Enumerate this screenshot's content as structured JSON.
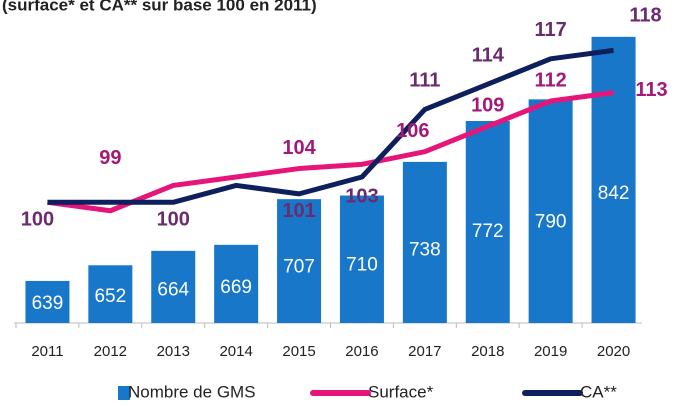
{
  "chart_data": {
    "type": "bar_line",
    "title": "(surface* et CA** sur base 100 en 2011)",
    "categories": [
      "2011",
      "2012",
      "2013",
      "2014",
      "2015",
      "2016",
      "2017",
      "2018",
      "2019",
      "2020"
    ],
    "ylim": [
      604,
      856
    ],
    "y2lim": [
      85.7,
      121.6
    ],
    "series": [
      {
        "name": "Nombre de GMS",
        "type": "bar",
        "color": "#1877c9",
        "values": [
          639,
          652,
          664,
          669,
          707,
          710,
          738,
          772,
          790,
          842
        ]
      },
      {
        "name": "Surface*",
        "type": "line",
        "axis": "y2",
        "color": "#e6157a",
        "label_color": "#a3197a",
        "values": [
          100,
          99,
          102,
          103,
          104,
          104.5,
          106,
          109,
          112,
          113
        ],
        "value_labels": [
          null,
          "99",
          null,
          null,
          "104",
          null,
          "106",
          "109",
          "112",
          "113"
        ]
      },
      {
        "name": "CA**",
        "type": "line",
        "axis": "y2",
        "color": "#0d1f5c",
        "label_color": "#6a2c6e",
        "values": [
          100,
          100,
          100,
          102,
          101,
          103,
          111,
          114,
          117,
          118
        ],
        "value_labels": [
          "100",
          null,
          "100",
          null,
          "101",
          "103",
          "111",
          "114",
          "117",
          "118"
        ]
      }
    ]
  }
}
